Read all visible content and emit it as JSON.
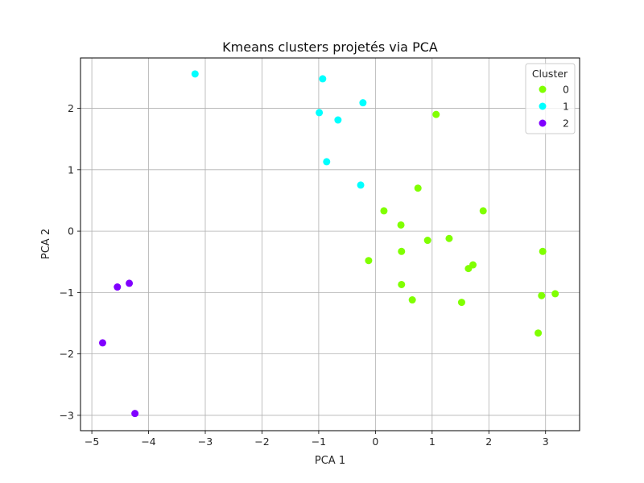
{
  "chart_data": {
    "type": "scatter",
    "title": "Kmeans clusters projetés via PCA",
    "xlabel": "PCA 1",
    "ylabel": "PCA 2",
    "xlim": [
      -5.2,
      3.6
    ],
    "ylim": [
      -3.25,
      2.82
    ],
    "xticks": [
      -5,
      -4,
      -3,
      -2,
      -1,
      0,
      1,
      2,
      3
    ],
    "yticks": [
      -3,
      -2,
      -1,
      0,
      1,
      2
    ],
    "grid": true,
    "legend": {
      "title": "Cluster",
      "placement": "top-right"
    },
    "series": [
      {
        "name": "0",
        "color": "#80ff00",
        "points": [
          [
            1.07,
            1.9
          ],
          [
            0.75,
            0.7
          ],
          [
            1.9,
            0.33
          ],
          [
            0.15,
            0.33
          ],
          [
            0.45,
            0.1
          ],
          [
            0.92,
            -0.15
          ],
          [
            1.3,
            -0.12
          ],
          [
            0.46,
            -0.33
          ],
          [
            2.95,
            -0.33
          ],
          [
            -0.12,
            -0.48
          ],
          [
            1.72,
            -0.55
          ],
          [
            1.64,
            -0.61
          ],
          [
            0.46,
            -0.87
          ],
          [
            3.17,
            -1.02
          ],
          [
            2.93,
            -1.05
          ],
          [
            0.65,
            -1.12
          ],
          [
            1.52,
            -1.16
          ],
          [
            2.87,
            -1.66
          ]
        ]
      },
      {
        "name": "1",
        "color": "#00ffff",
        "points": [
          [
            -3.18,
            2.56
          ],
          [
            -0.93,
            2.48
          ],
          [
            -0.22,
            2.09
          ],
          [
            -0.99,
            1.93
          ],
          [
            -0.66,
            1.81
          ],
          [
            -0.86,
            1.13
          ],
          [
            -0.26,
            0.75
          ]
        ]
      },
      {
        "name": "2",
        "color": "#8000ff",
        "points": [
          [
            -4.34,
            -0.85
          ],
          [
            -4.55,
            -0.91
          ],
          [
            -4.81,
            -1.82
          ],
          [
            -4.24,
            -2.97
          ]
        ]
      }
    ]
  }
}
